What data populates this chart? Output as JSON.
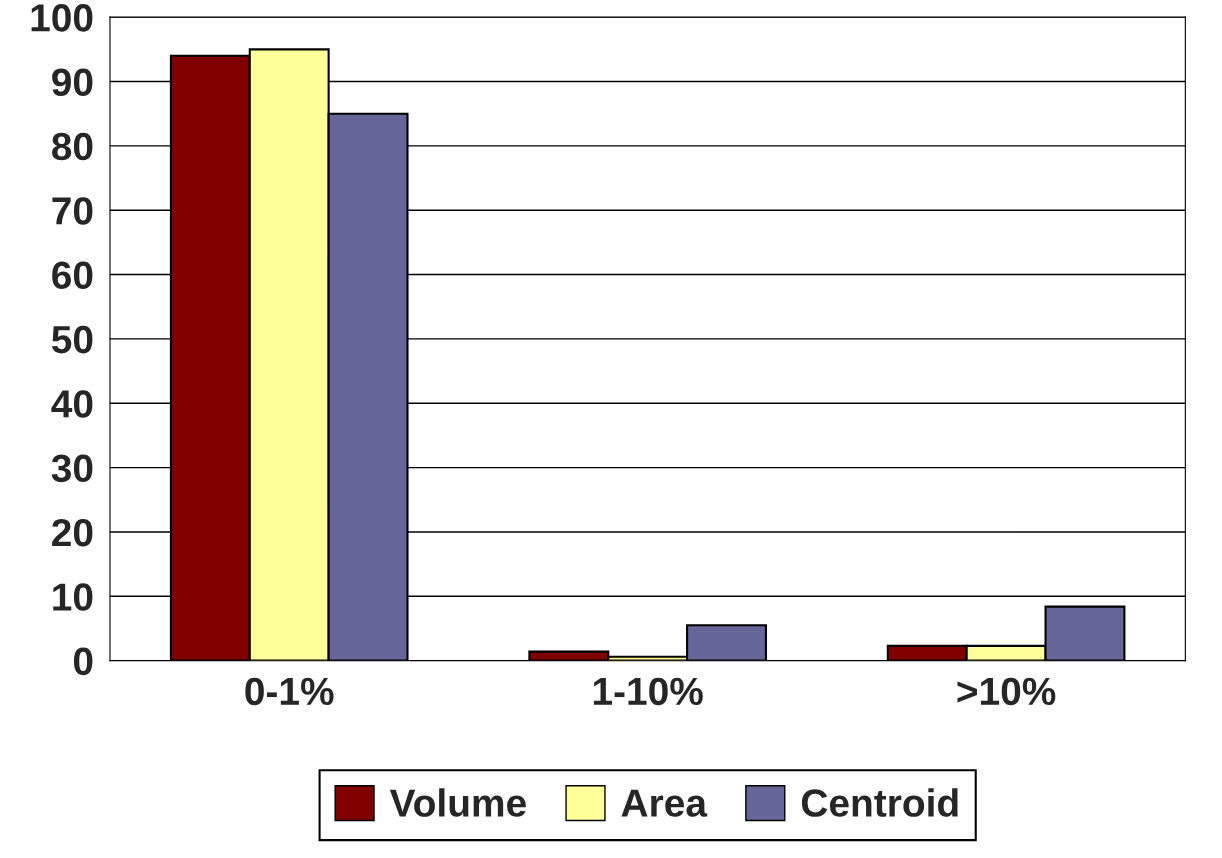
{
  "chart_data": {
    "type": "bar",
    "categories": [
      "0-1%",
      "1-10%",
      ">10%"
    ],
    "series": [
      {
        "name": "Volume",
        "color": "#800000",
        "values": [
          94,
          1.4,
          2.3
        ]
      },
      {
        "name": "Area",
        "color": "#ffff99",
        "values": [
          95,
          0.6,
          2.3
        ]
      },
      {
        "name": "Centroid",
        "color": "#666699",
        "values": [
          85,
          5.5,
          8.4
        ]
      }
    ],
    "ylim": [
      0,
      100
    ],
    "yticks": [
      0,
      10,
      20,
      30,
      40,
      50,
      60,
      70,
      80,
      90,
      100
    ],
    "grid": "y",
    "legend": "bottom"
  }
}
